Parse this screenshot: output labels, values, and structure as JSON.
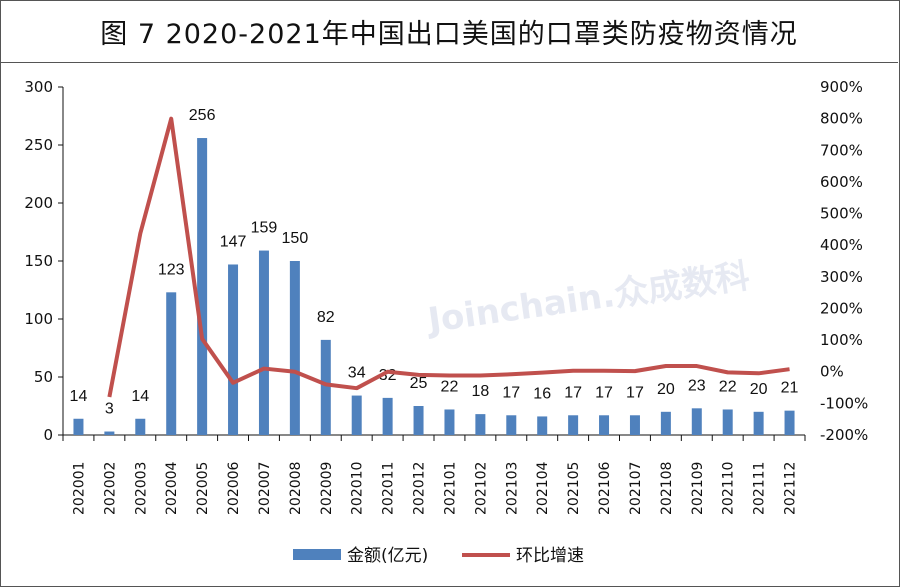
{
  "title": "图 7 2020-2021年中国出口美国的口罩类防疫物资情况",
  "watermark": "Joinchain.众成数科",
  "chart_data": {
    "type": "bar+line",
    "title": "图 7 2020-2021年中国出口美国的口罩类防疫物资情况",
    "categories": [
      "202001",
      "202002",
      "202003",
      "202004",
      "202005",
      "202006",
      "202007",
      "202008",
      "202009",
      "202010",
      "202011",
      "202012",
      "202101",
      "202102",
      "202103",
      "202104",
      "202105",
      "202106",
      "202107",
      "202108",
      "202109",
      "202110",
      "202111",
      "202112"
    ],
    "series": [
      {
        "name": "金额(亿元)",
        "type": "bar",
        "axis": "left",
        "color": "#4f81bd",
        "values": [
          14,
          3,
          14,
          123,
          256,
          147,
          159,
          150,
          82,
          34,
          32,
          25,
          22,
          18,
          17,
          16,
          17,
          17,
          17,
          20,
          23,
          22,
          20,
          21
        ]
      },
      {
        "name": "环比增速",
        "type": "line",
        "axis": "right",
        "color": "#c0504d",
        "values": [
          null,
          -80,
          437,
          800,
          104,
          -35,
          10,
          0,
          -40,
          -52,
          0,
          -10,
          -12,
          -12,
          -8,
          -3,
          3,
          3,
          2,
          18,
          18,
          -2,
          -5,
          8
        ]
      }
    ],
    "y_left": {
      "range": [
        0,
        300
      ],
      "ticks": [
        "0",
        "50",
        "100",
        "150",
        "200",
        "250",
        "300"
      ]
    },
    "y_right": {
      "range": [
        -200,
        900
      ],
      "ticks": [
        "-200%",
        "-100%",
        "0%",
        "100%",
        "200%",
        "300%",
        "400%",
        "500%",
        "600%",
        "700%",
        "800%",
        "900%"
      ]
    },
    "legend": "bottom",
    "grid": false
  }
}
